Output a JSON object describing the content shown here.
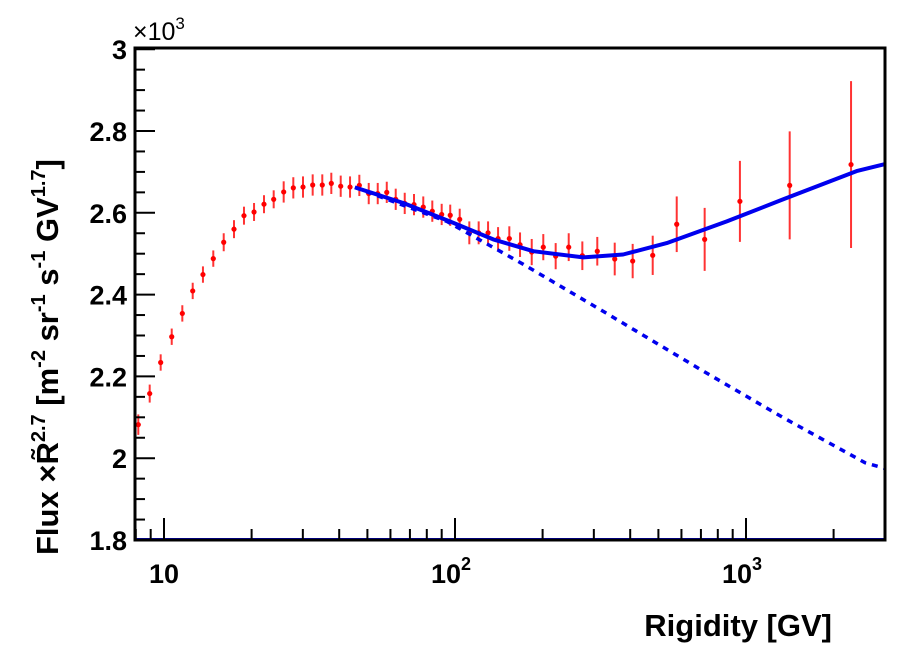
{
  "chart_data": {
    "type": "scatter",
    "title": "",
    "xlabel": "Rigidity [GV]",
    "ylabel_parts": [
      {
        "t": "Flux  ×R̃",
        "sup": false
      },
      {
        "t": "2.7",
        "sup": true
      },
      {
        "t": " [m",
        "sup": false
      },
      {
        "t": "-2",
        "sup": true
      },
      {
        "t": " sr",
        "sup": false
      },
      {
        "t": "-1",
        "sup": true
      },
      {
        "t": " s",
        "sup": false
      },
      {
        "t": "-1",
        "sup": true
      },
      {
        "t": " GV",
        "sup": false
      },
      {
        "t": "1.7",
        "sup": true
      },
      {
        "t": "]",
        "sup": false
      }
    ],
    "y_multiplier": {
      "base": "×10",
      "exp": "3"
    },
    "xscale": "log",
    "xlim": [
      7.95,
      3020
    ],
    "ylim": [
      1.8,
      3.0
    ],
    "x_ticks": [
      {
        "value": 10,
        "base": "10",
        "exp": ""
      },
      {
        "value": 100,
        "base": "10",
        "exp": "2"
      },
      {
        "value": 1000,
        "base": "10",
        "exp": "3"
      }
    ],
    "y_ticks": [
      {
        "value": 1.8,
        "label": "1.8"
      },
      {
        "value": 2.0,
        "label": "2"
      },
      {
        "value": 2.2,
        "label": "2.2"
      },
      {
        "value": 2.4,
        "label": "2.4"
      },
      {
        "value": 2.6,
        "label": "2.6"
      },
      {
        "value": 2.8,
        "label": "2.8"
      },
      {
        "value": 3.0,
        "label": "3"
      }
    ],
    "grid": false,
    "colors": {
      "data": "#ff0000",
      "fit": "#0000ee",
      "axis": "#000000"
    },
    "series": [
      {
        "name": "data",
        "kind": "points_with_errors",
        "points": [
          [
            8.16,
            2.082,
            0.025
          ],
          [
            8.93,
            2.158,
            0.022
          ],
          [
            9.74,
            2.234,
            0.02
          ],
          [
            10.63,
            2.297,
            0.02
          ],
          [
            11.56,
            2.354,
            0.02
          ],
          [
            12.55,
            2.409,
            0.02
          ],
          [
            13.61,
            2.449,
            0.02
          ],
          [
            14.77,
            2.488,
            0.02
          ],
          [
            16.04,
            2.528,
            0.022
          ],
          [
            17.4,
            2.56,
            0.022
          ],
          [
            18.83,
            2.593,
            0.022
          ],
          [
            20.39,
            2.602,
            0.022
          ],
          [
            22.06,
            2.621,
            0.022
          ],
          [
            23.82,
            2.633,
            0.022
          ],
          [
            25.78,
            2.651,
            0.026
          ],
          [
            27.82,
            2.661,
            0.026
          ],
          [
            30.04,
            2.663,
            0.026
          ],
          [
            32.43,
            2.668,
            0.026
          ],
          [
            34.99,
            2.668,
            0.026
          ],
          [
            37.58,
            2.672,
            0.026
          ],
          [
            40.48,
            2.665,
            0.026
          ],
          [
            43.58,
            2.663,
            0.026
          ],
          [
            46.91,
            2.667,
            0.026
          ],
          [
            50.53,
            2.647,
            0.026
          ],
          [
            54.26,
            2.647,
            0.026
          ],
          [
            58.28,
            2.65,
            0.026
          ],
          [
            62.56,
            2.633,
            0.026
          ],
          [
            67.18,
            2.623,
            0.026
          ],
          [
            72.3,
            2.62,
            0.026
          ],
          [
            77.8,
            2.614,
            0.026
          ],
          [
            83.56,
            2.604,
            0.026
          ],
          [
            90.0,
            2.596,
            0.026
          ],
          [
            96.3,
            2.594,
            0.026
          ],
          [
            103.8,
            2.584,
            0.026
          ],
          [
            112.0,
            2.551,
            0.028
          ],
          [
            120.6,
            2.551,
            0.028
          ],
          [
            129.9,
            2.551,
            0.028
          ],
          [
            140.6,
            2.537,
            0.028
          ],
          [
            153.7,
            2.537,
            0.03
          ],
          [
            167.3,
            2.522,
            0.03
          ],
          [
            183.5,
            2.504,
            0.032
          ],
          [
            201.1,
            2.516,
            0.032
          ],
          [
            221.8,
            2.494,
            0.032
          ],
          [
            245.9,
            2.516,
            0.034
          ],
          [
            273.9,
            2.495,
            0.035
          ],
          [
            308.3,
            2.506,
            0.035
          ],
          [
            353.9,
            2.487,
            0.04
          ],
          [
            407.9,
            2.482,
            0.042
          ],
          [
            478,
            2.496,
            0.048
          ],
          [
            578,
            2.572,
            0.068
          ],
          [
            721,
            2.535,
            0.077
          ],
          [
            953,
            2.628,
            0.099
          ],
          [
            1413,
            2.667,
            0.132
          ],
          [
            2296,
            2.718,
            0.204
          ]
        ]
      },
      {
        "name": "fit",
        "kind": "solid_line",
        "points": [
          [
            45.3,
            2.662
          ],
          [
            66.4,
            2.624
          ],
          [
            96,
            2.579
          ],
          [
            135.4,
            2.535
          ],
          [
            185.8,
            2.506
          ],
          [
            276,
            2.491
          ],
          [
            378,
            2.498
          ],
          [
            534,
            2.526
          ],
          [
            859,
            2.579
          ],
          [
            1343,
            2.633
          ],
          [
            2399,
            2.702
          ],
          [
            3006,
            2.719
          ]
        ]
      },
      {
        "name": "fit-without-break",
        "kind": "dashed_line",
        "points": [
          [
            45.3,
            2.662
          ],
          [
            93.7,
            2.579
          ],
          [
            171.7,
            2.474
          ],
          [
            323.3,
            2.359
          ],
          [
            713,
            2.213
          ],
          [
            1343,
            2.099
          ],
          [
            2565,
            1.989
          ],
          [
            3006,
            1.975
          ]
        ]
      }
    ]
  }
}
